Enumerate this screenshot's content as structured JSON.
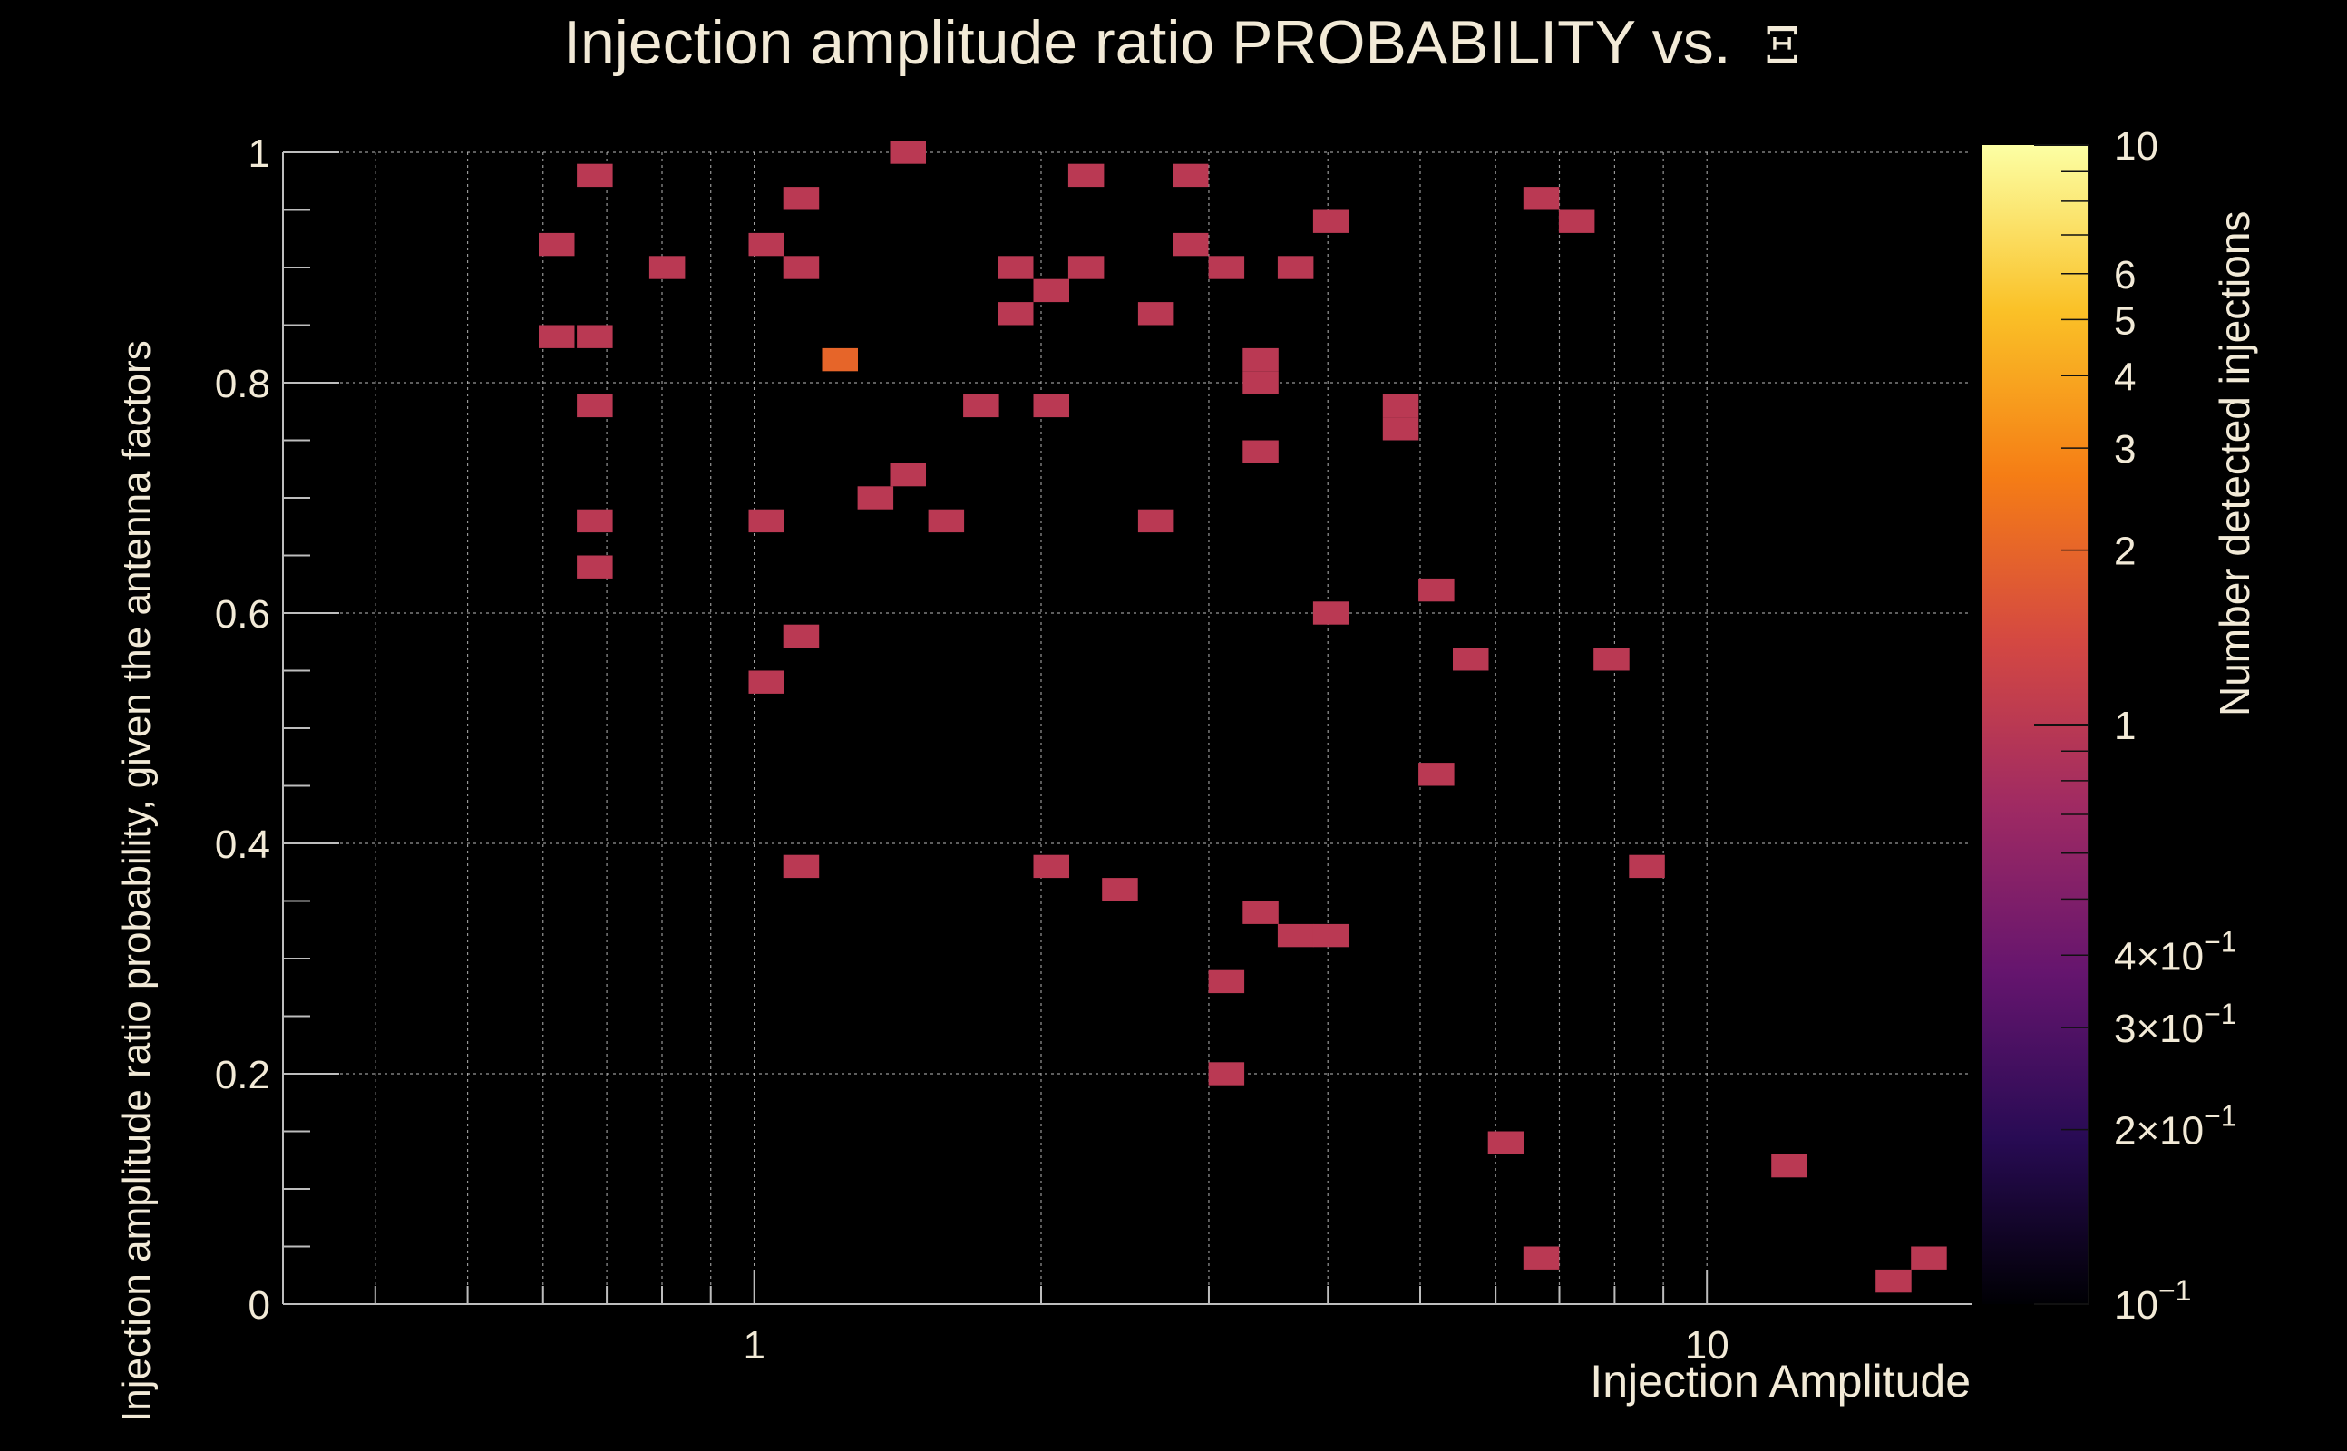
{
  "chart_data": {
    "type": "heatmap",
    "title": "Injection amplitude ratio PROBABILITY vs.",
    "title_symbol": "Ξ",
    "xlabel": "Injection Amplitude",
    "ylabel": "Injection amplitude ratio probability, given the antenna factors",
    "zlabel": "Number detected injections",
    "x_scale": "log",
    "xlim": [
      0.32,
      19.0
    ],
    "ylim": [
      0,
      1
    ],
    "z_scale": "log",
    "zlim": [
      0.1,
      10
    ],
    "grid": true,
    "x_tick_labels": [
      {
        "value": 1,
        "label": "1"
      },
      {
        "value": 10,
        "label": "10"
      }
    ],
    "y_tick_labels": [
      {
        "value": 0,
        "label": "0"
      },
      {
        "value": 0.2,
        "label": "0.2"
      },
      {
        "value": 0.4,
        "label": "0.4"
      },
      {
        "value": 0.6,
        "label": "0.6"
      },
      {
        "value": 0.8,
        "label": "0.8"
      },
      {
        "value": 1,
        "label": "1"
      }
    ],
    "z_tick_labels": [
      {
        "value": 10,
        "label": "10"
      },
      {
        "value": 6,
        "label": "6"
      },
      {
        "value": 5,
        "label": "5"
      },
      {
        "value": 4,
        "label": "4"
      },
      {
        "value": 3,
        "label": "3"
      },
      {
        "value": 2,
        "label": "2"
      },
      {
        "value": 1,
        "label": "1"
      },
      {
        "value": 0.4,
        "label": "4×10",
        "exp": "−1"
      },
      {
        "value": 0.3,
        "label": "3×10",
        "exp": "−1"
      },
      {
        "value": 0.2,
        "label": "2×10",
        "exp": "−1"
      },
      {
        "value": 0.1,
        "label": "10",
        "exp": "−1"
      }
    ],
    "colors": {
      "background": "#000000",
      "text": "#f2ead7",
      "grid": "#bdbdbd",
      "colormap": [
        "#000004",
        "#280b54",
        "#65156e",
        "#9f2a63",
        "#d44842",
        "#f57d15",
        "#fac127",
        "#fcffa4"
      ]
    },
    "cells": [
      {
        "x": 0.62,
        "y": 0.92,
        "count": 1
      },
      {
        "x": 0.62,
        "y": 0.84,
        "count": 1
      },
      {
        "x": 0.68,
        "y": 0.98,
        "count": 1
      },
      {
        "x": 0.68,
        "y": 0.84,
        "count": 1
      },
      {
        "x": 0.68,
        "y": 0.78,
        "count": 1
      },
      {
        "x": 0.68,
        "y": 0.68,
        "count": 1
      },
      {
        "x": 0.68,
        "y": 0.64,
        "count": 1
      },
      {
        "x": 0.81,
        "y": 0.9,
        "count": 1
      },
      {
        "x": 1.03,
        "y": 0.92,
        "count": 1
      },
      {
        "x": 1.03,
        "y": 0.68,
        "count": 1
      },
      {
        "x": 1.03,
        "y": 0.54,
        "count": 1
      },
      {
        "x": 1.12,
        "y": 0.96,
        "count": 1
      },
      {
        "x": 1.12,
        "y": 0.9,
        "count": 1
      },
      {
        "x": 1.12,
        "y": 0.58,
        "count": 1
      },
      {
        "x": 1.12,
        "y": 0.38,
        "count": 1
      },
      {
        "x": 1.23,
        "y": 0.82,
        "count": 2
      },
      {
        "x": 1.34,
        "y": 0.7,
        "count": 1
      },
      {
        "x": 1.45,
        "y": 1.0,
        "count": 1
      },
      {
        "x": 1.45,
        "y": 0.72,
        "count": 1
      },
      {
        "x": 1.59,
        "y": 0.68,
        "count": 1
      },
      {
        "x": 1.73,
        "y": 0.78,
        "count": 1
      },
      {
        "x": 1.88,
        "y": 0.9,
        "count": 1
      },
      {
        "x": 1.88,
        "y": 0.86,
        "count": 1
      },
      {
        "x": 2.05,
        "y": 0.88,
        "count": 1
      },
      {
        "x": 2.05,
        "y": 0.78,
        "count": 1
      },
      {
        "x": 2.05,
        "y": 0.38,
        "count": 1
      },
      {
        "x": 2.23,
        "y": 0.98,
        "count": 1
      },
      {
        "x": 2.23,
        "y": 0.9,
        "count": 1
      },
      {
        "x": 2.42,
        "y": 0.36,
        "count": 1
      },
      {
        "x": 2.64,
        "y": 0.86,
        "count": 1
      },
      {
        "x": 2.64,
        "y": 0.68,
        "count": 1
      },
      {
        "x": 2.87,
        "y": 0.98,
        "count": 1
      },
      {
        "x": 2.87,
        "y": 0.92,
        "count": 1
      },
      {
        "x": 3.13,
        "y": 0.9,
        "count": 1
      },
      {
        "x": 3.13,
        "y": 0.28,
        "count": 1
      },
      {
        "x": 3.13,
        "y": 0.2,
        "count": 1
      },
      {
        "x": 3.4,
        "y": 0.82,
        "count": 1
      },
      {
        "x": 3.4,
        "y": 0.8,
        "count": 1
      },
      {
        "x": 3.4,
        "y": 0.74,
        "count": 1
      },
      {
        "x": 3.4,
        "y": 0.34,
        "count": 1
      },
      {
        "x": 3.7,
        "y": 0.9,
        "count": 1
      },
      {
        "x": 3.7,
        "y": 0.32,
        "count": 1
      },
      {
        "x": 4.03,
        "y": 0.94,
        "count": 1
      },
      {
        "x": 4.03,
        "y": 0.6,
        "count": 1
      },
      {
        "x": 4.03,
        "y": 0.32,
        "count": 1
      },
      {
        "x": 4.77,
        "y": 0.78,
        "count": 1
      },
      {
        "x": 4.77,
        "y": 0.76,
        "count": 1
      },
      {
        "x": 5.2,
        "y": 0.62,
        "count": 1
      },
      {
        "x": 5.2,
        "y": 0.46,
        "count": 1
      },
      {
        "x": 5.65,
        "y": 0.56,
        "count": 1
      },
      {
        "x": 6.15,
        "y": 0.14,
        "count": 1
      },
      {
        "x": 6.7,
        "y": 0.96,
        "count": 1
      },
      {
        "x": 6.7,
        "y": 0.04,
        "count": 1
      },
      {
        "x": 7.3,
        "y": 0.94,
        "count": 1
      },
      {
        "x": 7.94,
        "y": 0.56,
        "count": 1
      },
      {
        "x": 8.65,
        "y": 0.38,
        "count": 1
      },
      {
        "x": 12.2,
        "y": 0.12,
        "count": 1
      },
      {
        "x": 15.7,
        "y": 0.02,
        "count": 1
      },
      {
        "x": 17.1,
        "y": 0.04,
        "count": 1
      }
    ]
  }
}
